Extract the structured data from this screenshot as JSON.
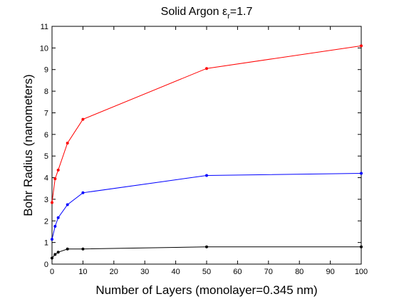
{
  "chart_data": {
    "type": "line",
    "title": {
      "prefix": "Solid Argon ",
      "epsilon": "ε",
      "subscript": "r",
      "suffix": "=1.7"
    },
    "xlabel": "Number of Layers (monolayer=0.345 nm)",
    "ylabel": "Bohr Radius (nanometers)",
    "xlim": [
      0,
      100
    ],
    "ylim": [
      0,
      11
    ],
    "x_ticks": [
      0,
      10,
      20,
      30,
      40,
      50,
      60,
      70,
      80,
      90,
      100
    ],
    "y_ticks": [
      0,
      1,
      2,
      3,
      4,
      5,
      6,
      7,
      8,
      9,
      10,
      11
    ],
    "x_tick_labels": [
      "0",
      "10",
      "20",
      "30",
      "40",
      "50",
      "60",
      "70",
      "80",
      "90",
      "100"
    ],
    "y_tick_labels": [
      "0",
      "1",
      "2",
      "3",
      "4",
      "5",
      "6",
      "7",
      "8",
      "9",
      "10",
      "11"
    ],
    "grid": false,
    "legend": "none",
    "series": [
      {
        "color": "#ff0000",
        "x": [
          0,
          1,
          2,
          5,
          10,
          50,
          100
        ],
        "y": [
          2.85,
          3.95,
          4.35,
          5.6,
          6.7,
          9.05,
          10.1
        ]
      },
      {
        "color": "#0000ff",
        "x": [
          0,
          1,
          2,
          5,
          10,
          50,
          100
        ],
        "y": [
          1.15,
          1.75,
          2.15,
          2.75,
          3.3,
          4.1,
          4.2
        ]
      },
      {
        "color": "#000000",
        "x": [
          0,
          1,
          2,
          5,
          10,
          50,
          100
        ],
        "y": [
          0.28,
          0.45,
          0.55,
          0.7,
          0.7,
          0.8,
          0.8
        ]
      }
    ]
  }
}
